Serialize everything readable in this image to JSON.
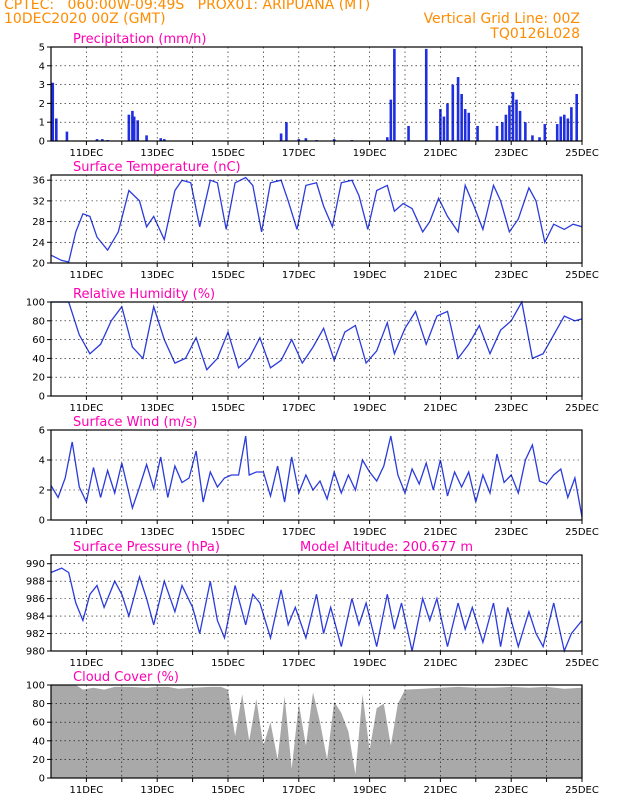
{
  "header": {
    "line1_left": "CPTEC:   060:00W-09:49S   PROX01: ARIPUANA (MT)",
    "line2_left": "10DEC2020 00Z (GMT)",
    "line2_right": "Vertical Grid Line: 00Z",
    "line3_right": "TQ0126L028"
  },
  "colors": {
    "header": "#ff8c00",
    "title": "#ff00b4",
    "line": "#2b3bdc",
    "bar": "#1f2fe0",
    "cloud": "#a9a9a9"
  },
  "x_tick_labels": [
    "11DEC",
    "13DEC",
    "15DEC",
    "17DEC",
    "19DEC",
    "21DEC",
    "23DEC",
    "25DEC"
  ],
  "x_range_days": [
    10,
    25
  ],
  "chart_data": [
    {
      "id": "precip",
      "type": "bar",
      "title": "Precipitation (mm/h)",
      "ylim": [
        0,
        5
      ],
      "yticks": [
        0,
        1,
        2,
        3,
        4,
        5
      ],
      "x": [
        10.05,
        10.15,
        10.45,
        11.3,
        11.45,
        11.6,
        12.2,
        12.3,
        12.35,
        12.45,
        12.7,
        13.1,
        13.2,
        16.5,
        16.65,
        17.0,
        17.2,
        17.5,
        18.0,
        18.5,
        19.5,
        19.6,
        19.7,
        20.1,
        20.6,
        21.0,
        21.1,
        21.2,
        21.35,
        21.5,
        21.6,
        21.7,
        21.8,
        22.05,
        22.6,
        22.75,
        22.85,
        22.95,
        23.05,
        23.15,
        23.25,
        23.4,
        23.6,
        23.8,
        23.95,
        24.3,
        24.4,
        24.5,
        24.6,
        24.7,
        24.85
      ],
      "values": [
        3.1,
        1.2,
        0.5,
        0.1,
        0.1,
        0.05,
        1.4,
        1.6,
        1.3,
        1.1,
        0.3,
        0.15,
        0.1,
        0.4,
        1.0,
        0.1,
        0.15,
        0.05,
        0.1,
        0.05,
        0.2,
        2.2,
        4.9,
        0.8,
        4.9,
        1.7,
        1.3,
        2.0,
        3.0,
        3.4,
        2.5,
        1.7,
        1.5,
        0.8,
        0.8,
        1.0,
        1.4,
        1.9,
        2.6,
        2.2,
        1.6,
        1.0,
        0.3,
        0.2,
        0.9,
        0.9,
        1.3,
        1.4,
        1.2,
        1.8,
        2.5
      ]
    },
    {
      "id": "temp",
      "type": "line",
      "title": "Surface Temperature (nC)",
      "ylim": [
        20,
        37
      ],
      "yticks": [
        20,
        24,
        28,
        32,
        36
      ],
      "x": [
        10.0,
        10.3,
        10.5,
        10.7,
        10.9,
        11.1,
        11.3,
        11.6,
        11.9,
        12.2,
        12.5,
        12.7,
        12.9,
        13.2,
        13.5,
        13.7,
        13.95,
        14.2,
        14.5,
        14.7,
        14.95,
        15.2,
        15.5,
        15.7,
        15.95,
        16.2,
        16.5,
        16.7,
        16.95,
        17.2,
        17.5,
        17.7,
        17.95,
        18.2,
        18.5,
        18.7,
        18.95,
        19.2,
        19.5,
        19.7,
        19.95,
        20.2,
        20.5,
        20.7,
        20.95,
        21.2,
        21.5,
        21.7,
        21.95,
        22.2,
        22.5,
        22.7,
        22.95,
        23.2,
        23.5,
        23.7,
        23.95,
        24.2,
        24.5,
        24.75,
        25.0
      ],
      "values": [
        21.5,
        20.5,
        20.2,
        26.0,
        29.5,
        29.0,
        25.0,
        22.5,
        26.0,
        34.0,
        32.0,
        27.0,
        29.0,
        24.5,
        34.0,
        36.0,
        35.5,
        27.0,
        36.0,
        35.5,
        26.5,
        35.5,
        36.5,
        35.0,
        26.0,
        35.5,
        36.0,
        32.0,
        26.5,
        35.0,
        35.5,
        31.0,
        27.0,
        35.5,
        36.0,
        33.0,
        26.5,
        34.0,
        35.0,
        30.0,
        31.5,
        30.5,
        26.0,
        28.0,
        32.5,
        29.0,
        26.0,
        35.0,
        31.0,
        26.5,
        35.0,
        32.0,
        26.0,
        28.5,
        34.5,
        32.0,
        24.0,
        27.5,
        26.5,
        27.5,
        27.0
      ]
    },
    {
      "id": "rh",
      "type": "line",
      "title": "Relative Humidity (%)",
      "ylim": [
        0,
        100
      ],
      "yticks": [
        0,
        20,
        40,
        60,
        80,
        100
      ],
      "x": [
        10.0,
        10.5,
        10.8,
        11.1,
        11.4,
        11.7,
        12.0,
        12.3,
        12.6,
        12.9,
        13.2,
        13.5,
        13.8,
        14.1,
        14.4,
        14.7,
        15.0,
        15.3,
        15.6,
        15.9,
        16.2,
        16.5,
        16.8,
        17.1,
        17.4,
        17.7,
        18.0,
        18.3,
        18.6,
        18.9,
        19.2,
        19.5,
        19.7,
        20.0,
        20.3,
        20.6,
        20.9,
        21.2,
        21.5,
        21.8,
        22.1,
        22.4,
        22.7,
        23.0,
        23.3,
        23.6,
        23.9,
        24.2,
        24.5,
        24.8,
        25.0
      ],
      "values": [
        100,
        100,
        65,
        45,
        55,
        80,
        95,
        52,
        40,
        95,
        60,
        35,
        40,
        62,
        28,
        40,
        68,
        30,
        40,
        62,
        30,
        38,
        60,
        35,
        52,
        72,
        38,
        68,
        75,
        35,
        48,
        78,
        45,
        72,
        90,
        55,
        85,
        90,
        40,
        55,
        75,
        45,
        70,
        80,
        100,
        40,
        45,
        65,
        85,
        80,
        82
      ]
    },
    {
      "id": "wind",
      "type": "line",
      "title": "Surface Wind (m/s)",
      "ylim": [
        0,
        6
      ],
      "yticks": [
        0,
        2,
        4,
        6
      ],
      "x": [
        10.0,
        10.2,
        10.4,
        10.6,
        10.8,
        11.0,
        11.2,
        11.4,
        11.6,
        11.8,
        12.0,
        12.3,
        12.5,
        12.7,
        12.9,
        13.1,
        13.3,
        13.5,
        13.7,
        13.9,
        14.1,
        14.3,
        14.5,
        14.7,
        14.9,
        15.1,
        15.3,
        15.5,
        15.6,
        15.8,
        16.0,
        16.2,
        16.4,
        16.6,
        16.8,
        17.0,
        17.2,
        17.4,
        17.6,
        17.8,
        18.0,
        18.2,
        18.4,
        18.6,
        18.8,
        19.0,
        19.2,
        19.4,
        19.6,
        19.8,
        20.0,
        20.2,
        20.4,
        20.6,
        20.8,
        21.0,
        21.2,
        21.4,
        21.6,
        21.8,
        22.0,
        22.2,
        22.4,
        22.6,
        22.8,
        23.0,
        23.2,
        23.4,
        23.6,
        23.8,
        24.0,
        24.2,
        24.4,
        24.6,
        24.8,
        25.0
      ],
      "values": [
        2.3,
        1.5,
        2.8,
        5.2,
        2.2,
        1.2,
        3.5,
        1.5,
        3.3,
        1.8,
        3.8,
        0.8,
        2.2,
        3.7,
        2.1,
        4.2,
        1.5,
        3.6,
        2.5,
        2.8,
        4.6,
        1.2,
        3.2,
        2.2,
        2.8,
        3.0,
        3.0,
        5.6,
        3.0,
        3.2,
        3.2,
        1.6,
        3.6,
        1.2,
        4.2,
        1.8,
        3.0,
        2.0,
        2.6,
        1.4,
        3.2,
        1.8,
        3.0,
        2.0,
        4.0,
        3.2,
        2.6,
        3.6,
        5.6,
        3.0,
        1.8,
        3.4,
        2.4,
        3.8,
        2.0,
        4.0,
        1.6,
        3.2,
        2.2,
        3.2,
        1.2,
        3.0,
        1.8,
        4.4,
        2.5,
        3.0,
        1.8,
        4.0,
        5.0,
        2.6,
        2.4,
        3.0,
        3.4,
        1.5,
        2.8,
        0.2
      ]
    },
    {
      "id": "pressure",
      "type": "line",
      "title": "Surface Pressure (hPa)",
      "subtitle": "Model Altitude: 200.677 m",
      "ylim": [
        980,
        991
      ],
      "yticks": [
        980,
        982,
        984,
        986,
        988,
        990
      ],
      "x": [
        10.0,
        10.3,
        10.5,
        10.7,
        10.9,
        11.1,
        11.3,
        11.5,
        11.8,
        12.0,
        12.2,
        12.5,
        12.7,
        12.9,
        13.2,
        13.5,
        13.7,
        14.0,
        14.2,
        14.5,
        14.7,
        14.9,
        15.2,
        15.5,
        15.7,
        15.9,
        16.2,
        16.5,
        16.7,
        16.9,
        17.2,
        17.5,
        17.7,
        17.9,
        18.2,
        18.5,
        18.7,
        18.9,
        19.2,
        19.5,
        19.7,
        19.9,
        20.2,
        20.5,
        20.7,
        20.9,
        21.2,
        21.5,
        21.7,
        21.9,
        22.2,
        22.5,
        22.7,
        22.9,
        23.2,
        23.5,
        23.7,
        23.9,
        24.2,
        24.5,
        24.7,
        25.0
      ],
      "values": [
        989.0,
        989.5,
        989.0,
        985.5,
        983.5,
        986.5,
        987.5,
        985.0,
        988.0,
        986.5,
        984.0,
        988.5,
        986.0,
        983.0,
        988.0,
        984.5,
        987.5,
        985.0,
        982.0,
        988.0,
        983.5,
        981.5,
        987.5,
        983.0,
        986.5,
        985.5,
        981.5,
        987.0,
        983.0,
        985.0,
        981.5,
        986.5,
        982.0,
        985.0,
        980.5,
        986.0,
        983.0,
        985.5,
        980.5,
        986.5,
        982.5,
        985.5,
        980.0,
        986.0,
        983.5,
        986.0,
        980.5,
        985.5,
        982.5,
        985.0,
        981.0,
        985.5,
        980.5,
        985.0,
        980.5,
        984.5,
        982.0,
        980.5,
        985.5,
        980.0,
        982.0,
        983.5
      ]
    },
    {
      "id": "cloud",
      "type": "area",
      "title": "Cloud Cover (%)",
      "ylim": [
        0,
        100
      ],
      "yticks": [
        0,
        20,
        40,
        60,
        80,
        100
      ],
      "x": [
        10.0,
        10.7,
        10.9,
        11.2,
        11.5,
        11.8,
        12.2,
        12.7,
        13.0,
        13.3,
        13.6,
        14.0,
        14.5,
        14.8,
        15.0,
        15.2,
        15.4,
        15.6,
        15.8,
        16.0,
        16.2,
        16.4,
        16.6,
        16.8,
        17.0,
        17.2,
        17.4,
        17.6,
        17.8,
        18.0,
        18.2,
        18.4,
        18.6,
        18.8,
        19.0,
        19.2,
        19.4,
        19.6,
        19.8,
        20.0,
        20.5,
        21.0,
        21.5,
        22.0,
        22.5,
        23.0,
        23.5,
        24.0,
        24.5,
        25.0
      ],
      "values": [
        100,
        100,
        95,
        97,
        95,
        98,
        98,
        97,
        98,
        98,
        96,
        97,
        98,
        98,
        95,
        45,
        90,
        40,
        85,
        35,
        60,
        20,
        88,
        10,
        80,
        35,
        92,
        60,
        20,
        82,
        70,
        50,
        4,
        90,
        30,
        75,
        80,
        35,
        80,
        95,
        96,
        97,
        98,
        97,
        97,
        98,
        97,
        98,
        96,
        97
      ]
    }
  ]
}
